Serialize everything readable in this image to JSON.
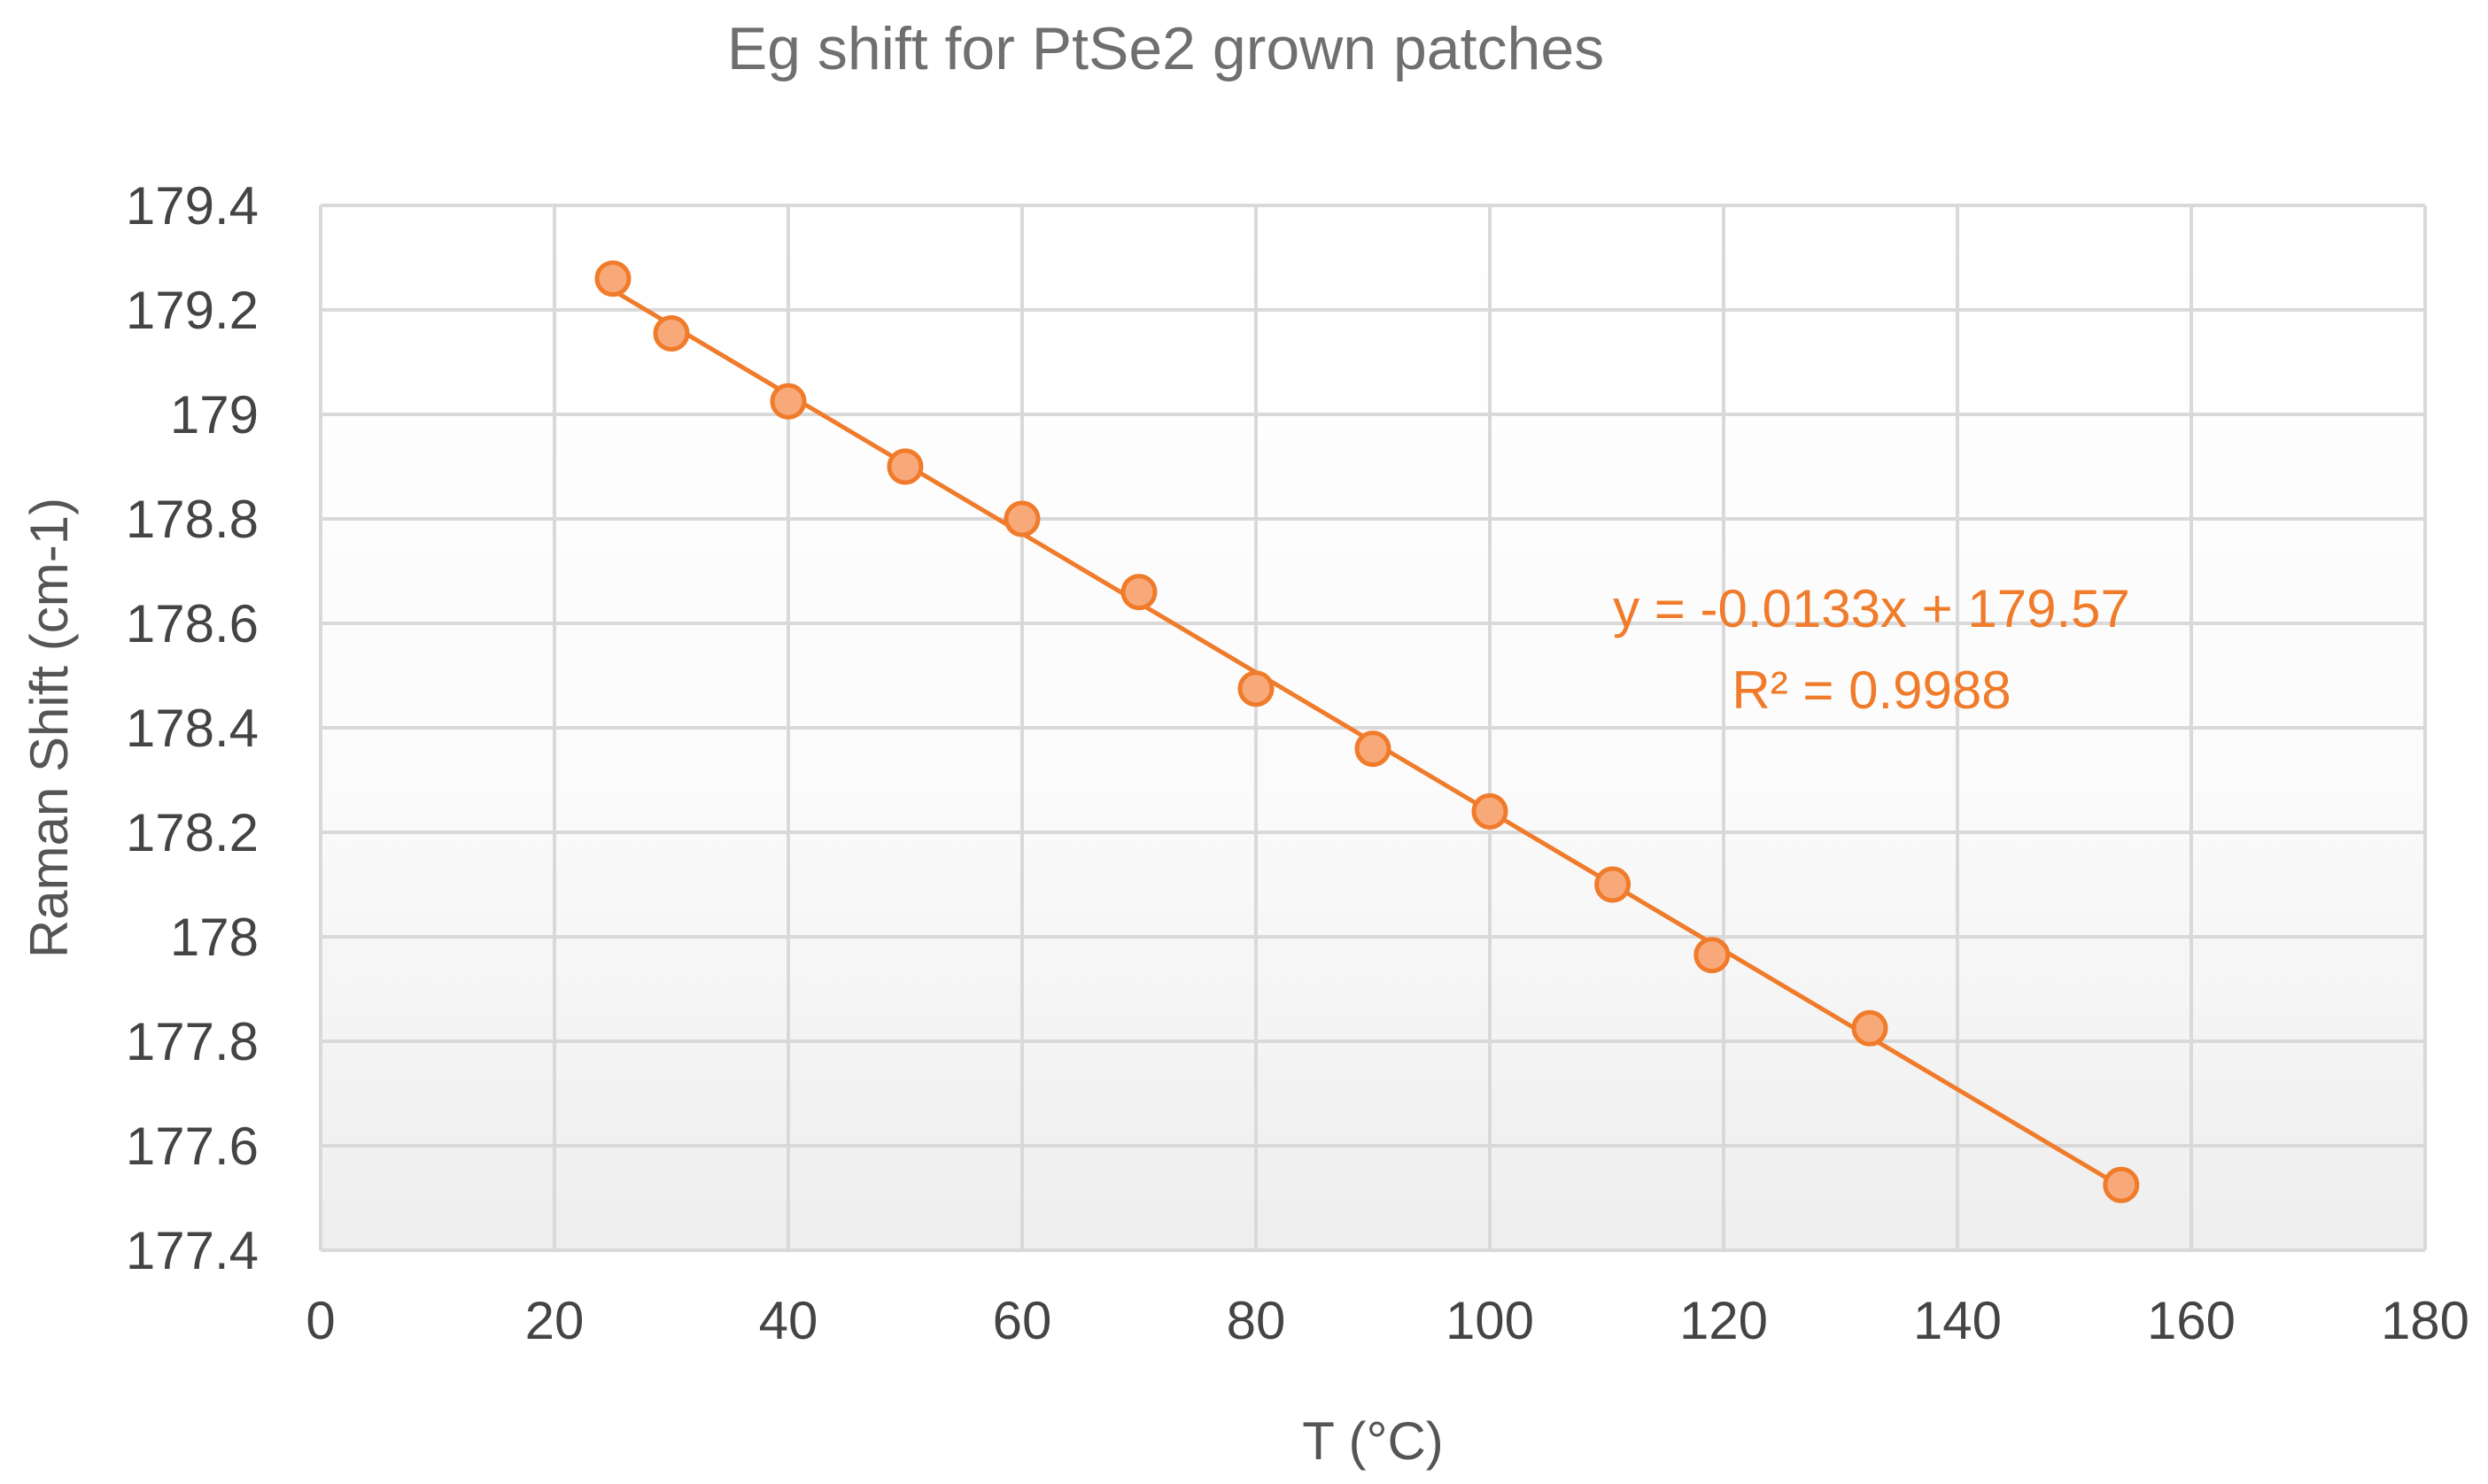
{
  "chart_data": {
    "type": "scatter",
    "title": "Eg shift for PtSe2 grown patches",
    "xlabel": "T (°C)",
    "ylabel": "Raman Shift (cm-1)",
    "xlim": [
      0,
      180
    ],
    "ylim": [
      177.4,
      179.4
    ],
    "x_ticks": [
      0,
      20,
      40,
      60,
      80,
      100,
      120,
      140,
      160,
      180
    ],
    "y_ticks": [
      177.4,
      177.6,
      177.8,
      178,
      178.2,
      178.4,
      178.6,
      178.8,
      179,
      179.2,
      179.4
    ],
    "x_tick_labels": [
      "0",
      "20",
      "40",
      "60",
      "80",
      "100",
      "120",
      "140",
      "160",
      "180"
    ],
    "y_tick_labels": [
      "177.4",
      "177.6",
      "177.8",
      "178",
      "178.2",
      "178.4",
      "178.6",
      "178.8",
      "179",
      "179.2",
      "179.4"
    ],
    "grid": true,
    "series": [
      {
        "name": "Eg",
        "color": "#f07b2a",
        "fill": "#f8a97a",
        "x": [
          25,
          30,
          40,
          50,
          60,
          70,
          80,
          90,
          100,
          110.5,
          119,
          132.5,
          154
        ],
        "y": [
          179.26,
          179.155,
          179.025,
          178.9,
          178.8,
          178.66,
          178.475,
          178.36,
          178.24,
          178.1,
          177.965,
          177.825,
          177.525
        ]
      }
    ],
    "trendline": {
      "type": "linear",
      "slope": -0.0133,
      "intercept": 179.57,
      "x_range": [
        25,
        154
      ],
      "color": "#f07b2a",
      "equation": "y = -0.0133x + 179.57",
      "r_squared": "R² = 0.9988"
    }
  }
}
